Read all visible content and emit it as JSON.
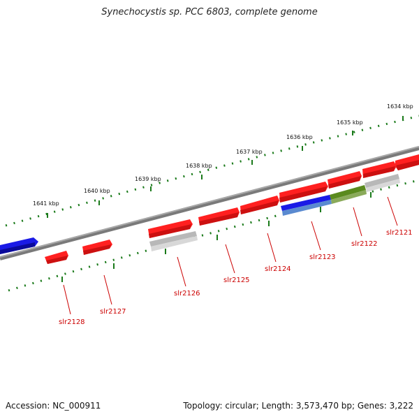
{
  "title": "Synechocystis sp. PCC 6803, complete genome",
  "footer": {
    "accession": "Accession: NC_000911",
    "summary": "Topology: circular; Length: 3,573,470 bp; Genes: 3,222"
  },
  "colors": {
    "backbone": "#7a7a7a",
    "ruler": "#1a7a1a",
    "gene_red": "#ff2020",
    "gene_blue": "#1a1ae6",
    "gene_gray": "#b8b8b8",
    "gene_green": "#5a8a1e",
    "label_red": "#cc0000"
  },
  "ticks": [
    {
      "label": "1634 kbp"
    },
    {
      "label": "1635 kbp"
    },
    {
      "label": "1636 kbp"
    },
    {
      "label": "1637 kbp"
    },
    {
      "label": "1638 kbp"
    },
    {
      "label": "1639 kbp"
    },
    {
      "label": "1640 kbp"
    },
    {
      "label": "1641 kbp"
    }
  ],
  "genes": [
    {
      "label": "slr2121"
    },
    {
      "label": "slr2122"
    },
    {
      "label": "slr2123"
    },
    {
      "label": "slr2124"
    },
    {
      "label": "slr2125"
    },
    {
      "label": "slr2126"
    },
    {
      "label": "slr2127"
    },
    {
      "label": "slr2128"
    }
  ]
}
